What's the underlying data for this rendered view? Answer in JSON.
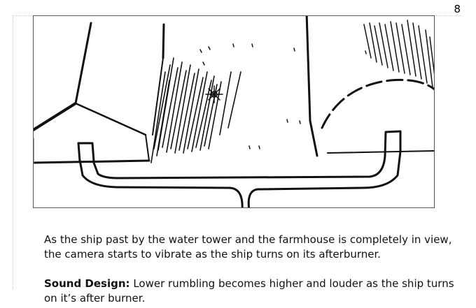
{
  "page_number": "8",
  "panel": {
    "sketch_name": "storyboard-sketch"
  },
  "caption": {
    "description": "As the ship past by the water tower and the farmhouse is completely in view, the camera starts to vibrate as the ship turns on its afterburner.",
    "sound_design_label": "Sound Design:",
    "sound_design_text": "Lower rumbling becomes higher and louder as the ship turns on it’s after burner."
  }
}
